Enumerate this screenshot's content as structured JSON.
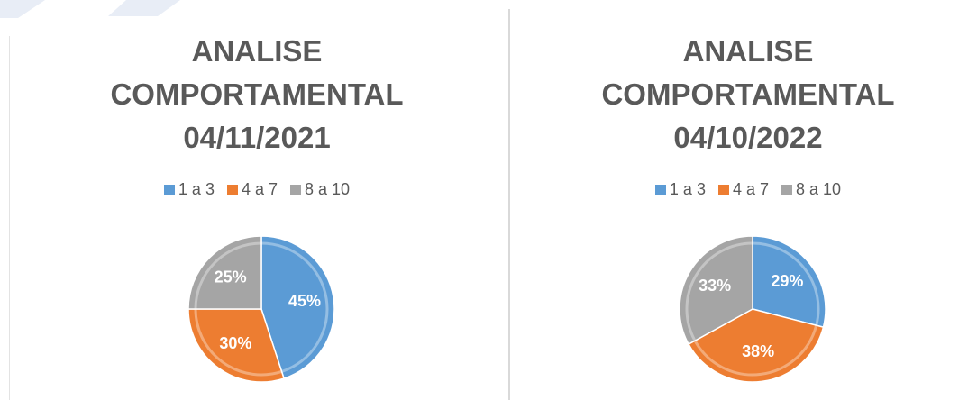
{
  "chart_data": [
    {
      "type": "pie",
      "title": "ANALISE COMPORTAMENTAL 04/11/2021",
      "categories": [
        "1 a 3",
        "4 a 7",
        "8 a 10"
      ],
      "values": [
        45,
        30,
        25
      ],
      "value_labels": [
        "45%",
        "30%",
        "25%"
      ],
      "colors": [
        "#5b9bd5",
        "#ed7d31",
        "#a5a5a5"
      ],
      "legend": "top"
    },
    {
      "type": "pie",
      "title": "ANALISE COMPORTAMENTAL 04/10/2022",
      "categories": [
        "1 a 3",
        "4 a 7",
        "8 a 10"
      ],
      "values": [
        29,
        38,
        33
      ],
      "value_labels": [
        "29%",
        "38%",
        "33%"
      ],
      "colors": [
        "#5b9bd5",
        "#ed7d31",
        "#a5a5a5"
      ],
      "legend": "top"
    }
  ]
}
